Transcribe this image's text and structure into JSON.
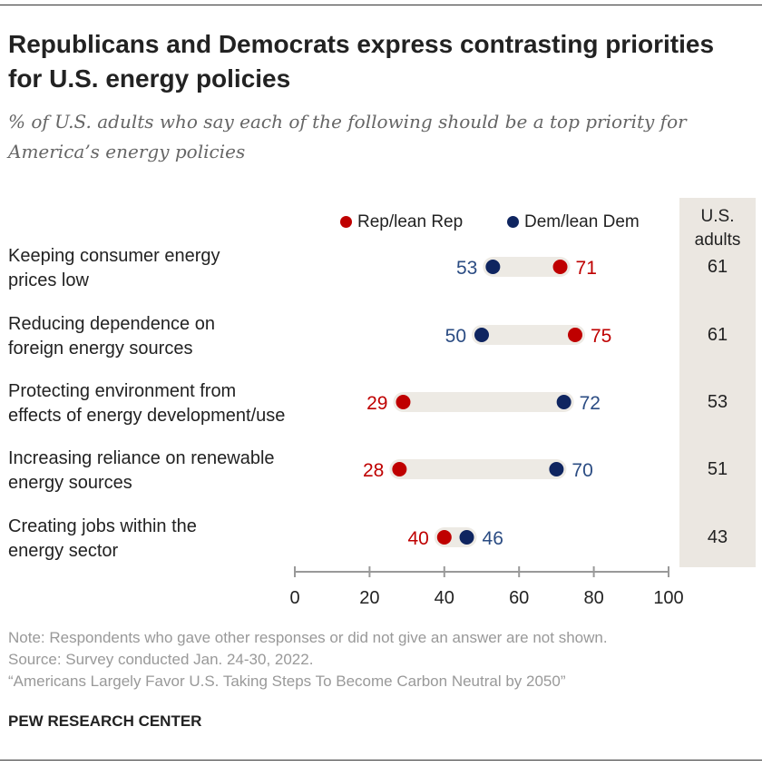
{
  "title": "Republicans and Democrats express contrasting priorities for U.S. energy policies",
  "subtitle": "% of U.S. adults who say each of the following should be a top priority for America’s energy policies",
  "colors": {
    "rep": "#bf0000",
    "dem": "#0f2560",
    "dem_label": "#2b4c83",
    "bar": "#edeae4",
    "us_column": "#ebe7e1"
  },
  "chart_data": {
    "type": "dot",
    "categories": [
      "Keeping consumer energy prices low",
      "Reducing dependence on foreign energy sources",
      "Protecting environment from effects of energy development/use",
      "Increasing reliance on renewable energy sources",
      "Creating jobs within the energy sector"
    ],
    "category_lines": [
      [
        "Keeping consumer energy",
        "prices low"
      ],
      [
        "Reducing dependence on",
        "foreign energy sources"
      ],
      [
        "Protecting environment from",
        "effects of energy development/use"
      ],
      [
        "Increasing reliance on renewable",
        "energy sources"
      ],
      [
        "Creating jobs within the",
        "energy sector"
      ]
    ],
    "series": [
      {
        "name": "Rep/lean Rep",
        "values": [
          71,
          75,
          29,
          28,
          40
        ]
      },
      {
        "name": "Dem/lean Dem",
        "values": [
          53,
          50,
          72,
          70,
          46
        ]
      }
    ],
    "us_adults": {
      "header": "U.S. adults",
      "values": [
        61,
        61,
        53,
        51,
        43
      ]
    },
    "xlim": [
      0,
      100
    ],
    "xticks": [
      0,
      20,
      40,
      60,
      80,
      100
    ],
    "legend": "top"
  },
  "notes": [
    "Note: Respondents who gave other responses or did not give an answer are not shown.",
    "Source: Survey conducted Jan. 24-30, 2022.",
    "“Americans Largely Favor U.S. Taking Steps To Become Carbon Neutral by 2050”"
  ],
  "brand": "PEW RESEARCH CENTER"
}
